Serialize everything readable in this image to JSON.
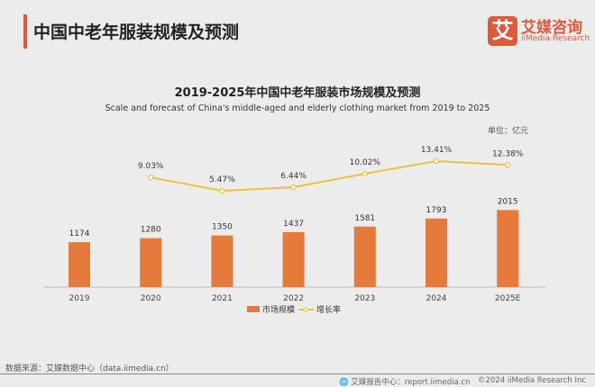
{
  "header": {
    "title": "中国中老年服装规模及预测",
    "logo_mark": "艾",
    "logo_cn": "艾媒咨询",
    "logo_en": "iiMedia Research"
  },
  "chart_data": {
    "type": "bar+line",
    "title": "2019-2025年中国中老年服装市场规模及预测",
    "subtitle": "Scale and forecast of China's middle-aged and elderly clothing market from 2019 to 2025",
    "unit": "单位：亿元",
    "categories": [
      "2019",
      "2020",
      "2021",
      "2022",
      "2023",
      "2024",
      "2025E"
    ],
    "series": [
      {
        "name": "市场规模",
        "type": "bar",
        "color": "#e57a3a",
        "values": [
          1174,
          1280,
          1350,
          1437,
          1581,
          1793,
          2015
        ],
        "labels": [
          "1174",
          "1280",
          "1350",
          "1437",
          "1581",
          "1793",
          "2015"
        ]
      },
      {
        "name": "增长率",
        "type": "line",
        "color": "#e8c23a",
        "values": [
          null,
          9.03,
          5.47,
          6.44,
          10.02,
          13.41,
          12.38
        ],
        "labels": [
          "",
          "9.03%",
          "5.47%",
          "6.44%",
          "10.02%",
          "13.41%",
          "12.38%"
        ]
      }
    ],
    "legend": "bottom"
  },
  "footer": {
    "source": "数据来源：艾媒数据中心（data.iimedia.cn）",
    "report": "艾媒报告中心：report.iimedia.cn",
    "copyright": "©2024  iiMedia Research Inc"
  }
}
